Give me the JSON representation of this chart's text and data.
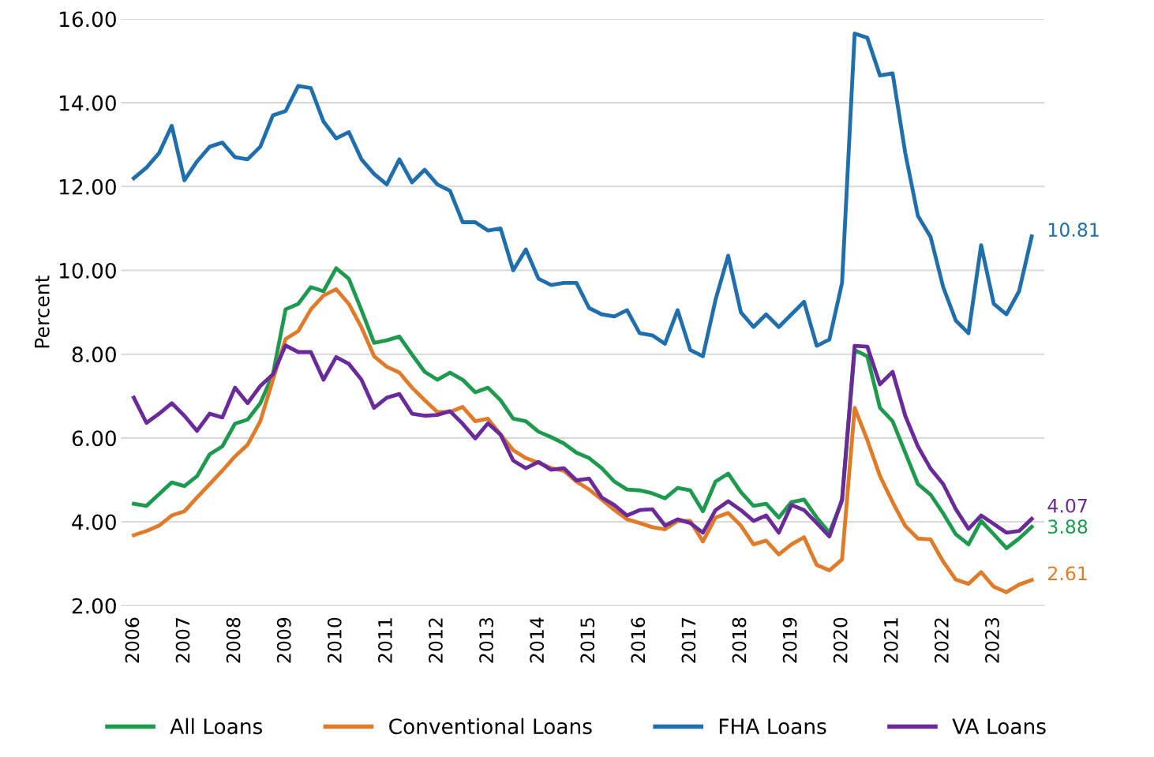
{
  "chart_data": {
    "type": "line",
    "ylabel": "Percent",
    "grid": "y",
    "legend": "bottom",
    "marker": "none",
    "line_style": "solid",
    "ylim": [
      2,
      16
    ],
    "yticks": [
      {
        "value": 2,
        "label": "2.00"
      },
      {
        "value": 4,
        "label": "4.00"
      },
      {
        "value": 6,
        "label": "6.00"
      },
      {
        "value": 8,
        "label": "8.00"
      },
      {
        "value": 10,
        "label": "10.00"
      },
      {
        "value": 12,
        "label": "12.00"
      },
      {
        "value": 14,
        "label": "14.00"
      },
      {
        "value": 16,
        "label": "16.00"
      }
    ],
    "categories": [
      "2006",
      null,
      null,
      null,
      "2007",
      null,
      null,
      null,
      "2008",
      null,
      null,
      null,
      "2009",
      null,
      null,
      null,
      "2010",
      null,
      null,
      null,
      "2011",
      null,
      null,
      null,
      "2012",
      null,
      null,
      null,
      "2013",
      null,
      null,
      null,
      "2014",
      null,
      null,
      null,
      "2015",
      null,
      null,
      null,
      "2016",
      null,
      null,
      null,
      "2017",
      null,
      null,
      null,
      "2018",
      null,
      null,
      null,
      "2019",
      null,
      null,
      null,
      "2020",
      null,
      null,
      null,
      "2021",
      null,
      null,
      null,
      "2022",
      null,
      null,
      null,
      "2023",
      null,
      null,
      null
    ],
    "series": [
      {
        "name": "All Loans",
        "color": "#1e9a4f",
        "values": [
          4.43,
          4.38,
          4.66,
          4.94,
          4.85,
          5.09,
          5.61,
          5.8,
          6.34,
          6.44,
          6.83,
          7.52,
          9.07,
          9.2,
          9.6,
          9.5,
          10.05,
          9.8,
          9.05,
          8.27,
          8.33,
          8.42,
          7.99,
          7.58,
          7.39,
          7.56,
          7.39,
          7.09,
          7.2,
          6.9,
          6.46,
          6.4,
          6.15,
          6.02,
          5.87,
          5.65,
          5.52,
          5.28,
          4.96,
          4.77,
          4.75,
          4.68,
          4.56,
          4.81,
          4.75,
          4.25,
          4.96,
          5.15,
          4.71,
          4.38,
          4.43,
          4.1,
          4.47,
          4.53,
          4.1,
          3.74,
          4.5,
          8.1,
          7.95,
          6.72,
          6.4,
          5.65,
          4.9,
          4.65,
          4.2,
          3.7,
          3.46,
          4.02,
          3.7,
          3.37,
          3.6,
          3.88
        ],
        "value_labels": [
          null,
          null,
          null,
          null,
          null,
          null,
          null,
          null,
          null,
          null,
          null,
          null,
          null,
          null,
          null,
          null,
          null,
          null,
          null,
          null,
          null,
          null,
          null,
          null,
          null,
          null,
          null,
          null,
          null,
          null,
          null,
          null,
          null,
          null,
          null,
          null,
          null,
          null,
          null,
          null,
          null,
          null,
          null,
          null,
          null,
          null,
          null,
          null,
          null,
          null,
          null,
          null,
          null,
          null,
          null,
          null,
          null,
          null,
          null,
          null,
          null,
          null,
          null,
          null,
          null,
          null,
          null,
          null,
          null,
          null,
          null,
          "3.88"
        ]
      },
      {
        "name": "Conventional Loans",
        "color": "#e07b2a",
        "values": [
          3.68,
          3.78,
          3.91,
          4.15,
          4.25,
          4.58,
          4.9,
          5.22,
          5.56,
          5.84,
          6.4,
          7.39,
          8.36,
          8.55,
          9.07,
          9.4,
          9.55,
          9.2,
          8.64,
          7.95,
          7.7,
          7.56,
          7.2,
          6.9,
          6.62,
          6.62,
          6.74,
          6.4,
          6.46,
          6.08,
          5.71,
          5.52,
          5.41,
          5.28,
          5.22,
          4.96,
          4.77,
          4.53,
          4.28,
          4.06,
          3.97,
          3.87,
          3.82,
          4.02,
          4.02,
          3.53,
          4.1,
          4.21,
          3.91,
          3.46,
          3.55,
          3.22,
          3.46,
          3.63,
          2.97,
          2.84,
          3.1,
          6.72,
          5.95,
          5.09,
          4.47,
          3.9,
          3.6,
          3.58,
          3.05,
          2.62,
          2.52,
          2.8,
          2.45,
          2.32,
          2.5,
          2.61
        ],
        "value_labels": [
          null,
          null,
          null,
          null,
          null,
          null,
          null,
          null,
          null,
          null,
          null,
          null,
          null,
          null,
          null,
          null,
          null,
          null,
          null,
          null,
          null,
          null,
          null,
          null,
          null,
          null,
          null,
          null,
          null,
          null,
          null,
          null,
          null,
          null,
          null,
          null,
          null,
          null,
          null,
          null,
          null,
          null,
          null,
          null,
          null,
          null,
          null,
          null,
          null,
          null,
          null,
          null,
          null,
          null,
          null,
          null,
          null,
          null,
          null,
          null,
          null,
          null,
          null,
          null,
          null,
          null,
          null,
          null,
          null,
          null,
          null,
          "2.61"
        ]
      },
      {
        "name": "FHA Loans",
        "color": "#1f6fad",
        "values": [
          12.2,
          12.45,
          12.8,
          13.45,
          12.15,
          12.6,
          12.95,
          13.05,
          12.7,
          12.65,
          12.95,
          13.7,
          13.8,
          14.4,
          14.35,
          13.55,
          13.15,
          13.3,
          12.65,
          12.3,
          12.05,
          12.65,
          12.1,
          12.4,
          12.05,
          11.9,
          11.15,
          11.15,
          10.95,
          11.0,
          10.0,
          10.5,
          9.8,
          9.65,
          9.7,
          9.7,
          9.1,
          8.95,
          8.9,
          9.05,
          8.5,
          8.45,
          8.25,
          9.05,
          8.1,
          7.95,
          9.3,
          10.35,
          9.0,
          8.65,
          8.95,
          8.65,
          8.95,
          9.25,
          8.2,
          8.35,
          9.7,
          15.65,
          15.55,
          14.65,
          14.7,
          12.8,
          11.3,
          10.8,
          9.6,
          8.8,
          8.5,
          10.6,
          9.2,
          8.95,
          9.5,
          10.81
        ],
        "value_labels": [
          null,
          null,
          null,
          null,
          null,
          null,
          null,
          null,
          null,
          null,
          null,
          null,
          null,
          null,
          null,
          null,
          null,
          null,
          null,
          null,
          null,
          null,
          null,
          null,
          null,
          null,
          null,
          null,
          null,
          null,
          null,
          null,
          null,
          null,
          null,
          null,
          null,
          null,
          null,
          null,
          null,
          null,
          null,
          null,
          null,
          null,
          null,
          null,
          null,
          null,
          null,
          null,
          null,
          null,
          null,
          null,
          null,
          null,
          null,
          null,
          null,
          null,
          null,
          null,
          null,
          null,
          null,
          null,
          null,
          null,
          null,
          "10.81"
        ]
      },
      {
        "name": "VA Loans",
        "color": "#6a2a9a",
        "values": [
          6.96,
          6.36,
          6.58,
          6.83,
          6.53,
          6.17,
          6.58,
          6.49,
          7.2,
          6.83,
          7.24,
          7.52,
          8.21,
          8.05,
          8.05,
          7.39,
          7.93,
          7.77,
          7.39,
          6.72,
          6.96,
          7.05,
          6.58,
          6.53,
          6.55,
          6.64,
          6.34,
          5.99,
          6.35,
          6.08,
          5.46,
          5.28,
          5.43,
          5.24,
          5.28,
          4.99,
          5.03,
          4.58,
          4.4,
          4.15,
          4.28,
          4.3,
          3.91,
          4.06,
          3.97,
          3.74,
          4.28,
          4.49,
          4.28,
          4.02,
          4.15,
          3.74,
          4.4,
          4.28,
          3.97,
          3.65,
          4.53,
          8.2,
          8.18,
          7.28,
          7.58,
          6.53,
          5.8,
          5.27,
          4.9,
          4.3,
          3.83,
          4.15,
          3.95,
          3.74,
          3.78,
          4.07
        ],
        "value_labels": [
          null,
          null,
          null,
          null,
          null,
          null,
          null,
          null,
          null,
          null,
          null,
          null,
          null,
          null,
          null,
          null,
          null,
          null,
          null,
          null,
          null,
          null,
          null,
          null,
          null,
          null,
          null,
          null,
          null,
          null,
          null,
          null,
          null,
          null,
          null,
          null,
          null,
          null,
          null,
          null,
          null,
          null,
          null,
          null,
          null,
          null,
          null,
          null,
          null,
          null,
          null,
          null,
          null,
          null,
          null,
          null,
          null,
          null,
          null,
          null,
          null,
          null,
          null,
          null,
          null,
          null,
          null,
          null,
          null,
          null,
          null,
          "4.07"
        ]
      }
    ]
  }
}
